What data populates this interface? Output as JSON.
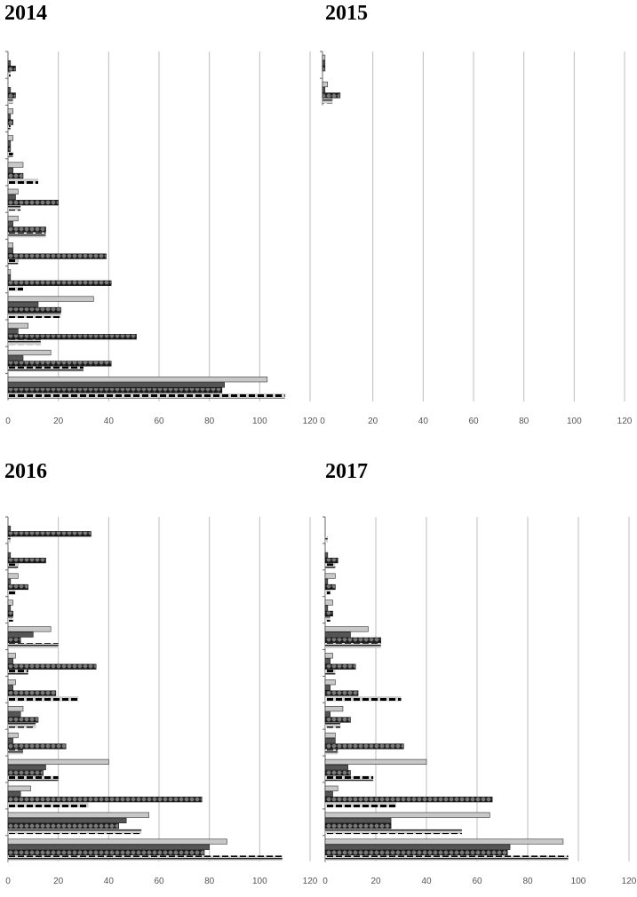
{
  "chart_data": [
    {
      "type": "bar",
      "orientation": "horizontal",
      "title": "2014",
      "xlim": [
        0,
        120
      ],
      "xticks": [
        "0",
        "20",
        "40",
        "60",
        "80",
        "100",
        "120"
      ],
      "grid": true,
      "series_styles": [
        "light-gray",
        "dark-gray",
        "star-pattern",
        "dashed-black"
      ],
      "groups": [
        {
          "values": [
            0,
            1,
            3,
            1
          ]
        },
        {
          "values": [
            0,
            1,
            3,
            2
          ]
        },
        {
          "values": [
            2,
            1,
            2,
            1
          ]
        },
        {
          "values": [
            2,
            1,
            1,
            2
          ]
        },
        {
          "values": [
            6,
            2,
            6,
            12
          ]
        },
        {
          "values": [
            4,
            3,
            20,
            5
          ]
        },
        {
          "values": [
            4,
            2,
            15,
            15
          ]
        },
        {
          "values": [
            2,
            2,
            39,
            4
          ]
        },
        {
          "values": [
            1,
            1,
            41,
            6
          ]
        },
        {
          "values": [
            34,
            12,
            21,
            21
          ]
        },
        {
          "values": [
            8,
            4,
            51,
            13
          ]
        },
        {
          "values": [
            17,
            6,
            41,
            30
          ]
        },
        {
          "values": [
            103,
            86,
            85,
            110
          ]
        }
      ]
    },
    {
      "type": "bar",
      "orientation": "horizontal",
      "title": "2015",
      "xlim": [
        0,
        120
      ],
      "xticks": [
        "0",
        "20",
        "40",
        "60",
        "80",
        "100",
        "120"
      ],
      "grid": true,
      "series_styles": [
        "light-gray",
        "dark-gray",
        "star-pattern",
        "dashed-black"
      ],
      "groups": [
        {
          "values": [
            1,
            1,
            1,
            0
          ]
        },
        {
          "values": [
            2,
            1,
            7,
            4
          ]
        }
      ]
    },
    {
      "type": "bar",
      "orientation": "horizontal",
      "title": "2016",
      "xlim": [
        0,
        120
      ],
      "xticks": [
        "0",
        "20",
        "40",
        "60",
        "80",
        "100",
        "120"
      ],
      "grid": true,
      "series_styles": [
        "light-gray",
        "dark-gray",
        "star-pattern",
        "dashed-black"
      ],
      "groups": [
        {
          "values": [
            0,
            1,
            33,
            1
          ]
        },
        {
          "values": [
            0,
            1,
            15,
            4
          ]
        },
        {
          "values": [
            4,
            1,
            8,
            3
          ]
        },
        {
          "values": [
            2,
            1,
            2,
            2
          ]
        },
        {
          "values": [
            17,
            10,
            5,
            20
          ]
        },
        {
          "values": [
            3,
            2,
            35,
            8
          ]
        },
        {
          "values": [
            3,
            2,
            19,
            28
          ]
        },
        {
          "values": [
            6,
            5,
            12,
            11
          ]
        },
        {
          "values": [
            4,
            2,
            23,
            6
          ]
        },
        {
          "values": [
            40,
            15,
            14,
            20
          ]
        },
        {
          "values": [
            9,
            5,
            77,
            32
          ]
        },
        {
          "values": [
            56,
            47,
            44,
            53
          ]
        },
        {
          "values": [
            87,
            80,
            78,
            109
          ]
        }
      ]
    },
    {
      "type": "bar",
      "orientation": "horizontal",
      "title": "2017",
      "xlim": [
        0,
        120
      ],
      "xticks": [
        "0",
        "20",
        "40",
        "60",
        "80",
        "100",
        "120"
      ],
      "grid": true,
      "series_styles": [
        "light-gray",
        "dark-gray",
        "star-pattern",
        "dashed-black"
      ],
      "groups": [
        {
          "values": [
            0,
            0,
            0,
            1
          ]
        },
        {
          "values": [
            0,
            1,
            5,
            4
          ]
        },
        {
          "values": [
            4,
            1,
            4,
            2
          ]
        },
        {
          "values": [
            3,
            1,
            3,
            2
          ]
        },
        {
          "values": [
            17,
            10,
            22,
            22
          ]
        },
        {
          "values": [
            3,
            2,
            12,
            4
          ]
        },
        {
          "values": [
            4,
            2,
            13,
            30
          ]
        },
        {
          "values": [
            7,
            2,
            10,
            6
          ]
        },
        {
          "values": [
            4,
            4,
            31,
            5
          ]
        },
        {
          "values": [
            40,
            9,
            10,
            19
          ]
        },
        {
          "values": [
            5,
            3,
            66,
            28
          ]
        },
        {
          "values": [
            65,
            26,
            26,
            54
          ]
        },
        {
          "values": [
            94,
            73,
            72,
            96
          ]
        }
      ]
    }
  ]
}
